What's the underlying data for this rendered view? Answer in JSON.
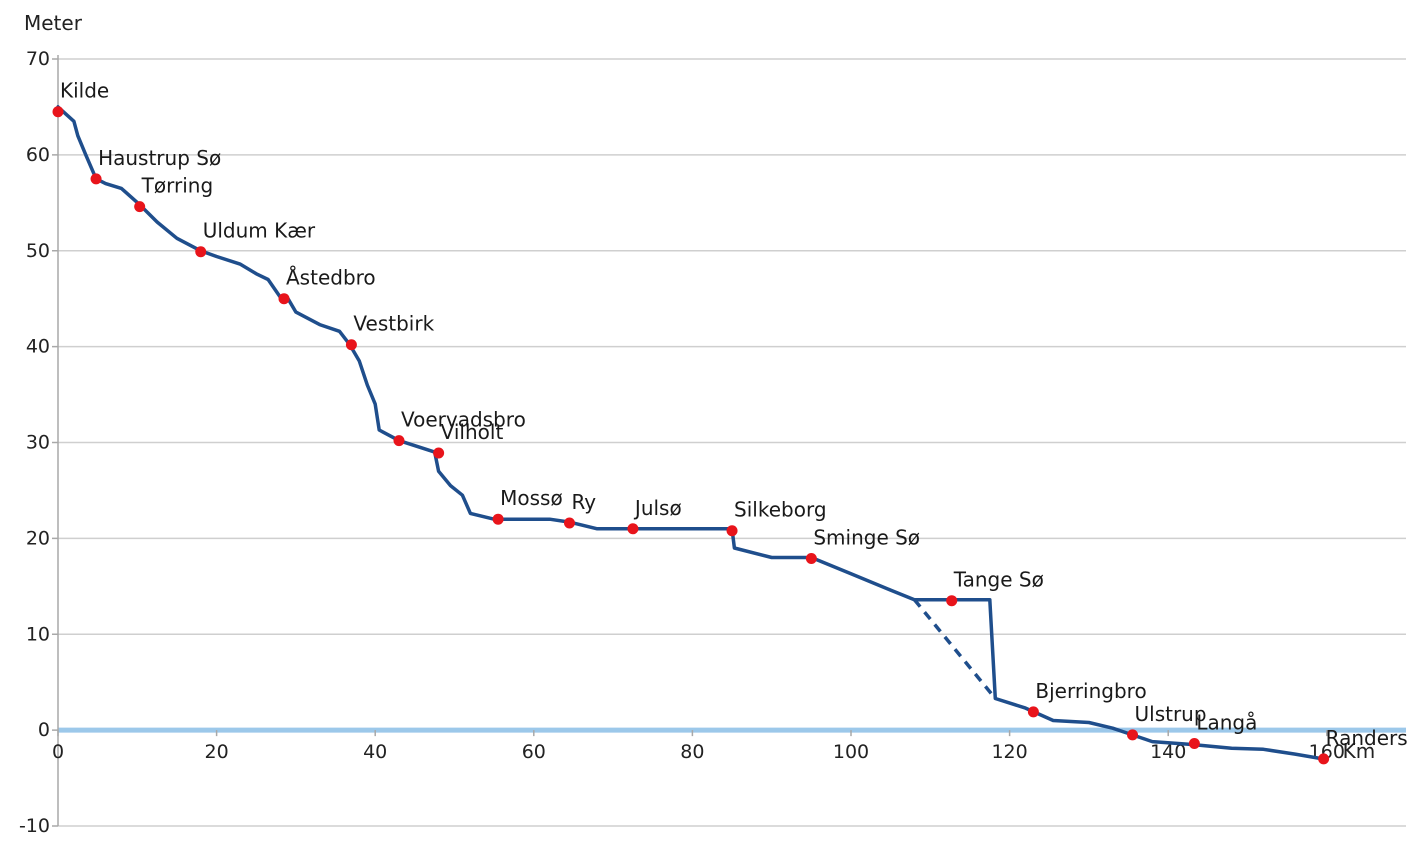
{
  "chart_data": {
    "type": "line",
    "ylabel": "Meter",
    "xunit": "Km",
    "xlim": [
      0,
      170
    ],
    "ylim": [
      -10,
      70
    ],
    "xticks": [
      0,
      20,
      40,
      60,
      80,
      100,
      120,
      140,
      160
    ],
    "yticks": [
      -10,
      0,
      10,
      20,
      30,
      40,
      50,
      60,
      70
    ],
    "grid": true,
    "colors": {
      "line": "#1f4e8c",
      "marker": "#e8141b",
      "zero_line": "#9cc8ea",
      "grid": "#cfcfcf"
    },
    "profile": [
      [
        0,
        65
      ],
      [
        2,
        63.5
      ],
      [
        2.5,
        62
      ],
      [
        3.5,
        60
      ],
      [
        4.8,
        57.5
      ],
      [
        6,
        57
      ],
      [
        8,
        56.5
      ],
      [
        10.3,
        54.8
      ],
      [
        12.5,
        53
      ],
      [
        15,
        51.3
      ],
      [
        18,
        50
      ],
      [
        20,
        49.4
      ],
      [
        23,
        48.6
      ],
      [
        25,
        47.6
      ],
      [
        26.5,
        47
      ],
      [
        28,
        45.2
      ],
      [
        29,
        45
      ],
      [
        30,
        43.6
      ],
      [
        33,
        42.3
      ],
      [
        35.5,
        41.6
      ],
      [
        36.8,
        40.2
      ],
      [
        38,
        38.5
      ],
      [
        39,
        36
      ],
      [
        40,
        34
      ],
      [
        40.5,
        31.3
      ],
      [
        43,
        30.2
      ],
      [
        47.5,
        29
      ],
      [
        48,
        27
      ],
      [
        49.5,
        25.5
      ],
      [
        51,
        24.5
      ],
      [
        52,
        22.6
      ],
      [
        55,
        22
      ],
      [
        60,
        22
      ],
      [
        62,
        22
      ],
      [
        64.5,
        21.7
      ],
      [
        68,
        21
      ],
      [
        75,
        21
      ],
      [
        85,
        21
      ],
      [
        85.3,
        19
      ],
      [
        90,
        18
      ],
      [
        95,
        18
      ],
      [
        100,
        16.3
      ],
      [
        105,
        14.6
      ],
      [
        108,
        13.6
      ],
      [
        113,
        13.6
      ],
      [
        117.5,
        13.6
      ],
      [
        118.2,
        3.3
      ],
      [
        122,
        2.3
      ],
      [
        125.5,
        1
      ],
      [
        130,
        0.8
      ],
      [
        133,
        0.2
      ],
      [
        135.5,
        -0.5
      ],
      [
        138,
        -1.2
      ],
      [
        143,
        -1.5
      ],
      [
        148,
        -1.9
      ],
      [
        152,
        -2
      ],
      [
        156,
        -2.5
      ],
      [
        159.5,
        -3
      ]
    ],
    "dashed_segment": [
      [
        108,
        13.6
      ],
      [
        118,
        3.5
      ]
    ],
    "points": [
      {
        "name": "Kilde",
        "x": 0,
        "y": 64.5
      },
      {
        "name": "Haustrup Sø",
        "x": 4.8,
        "y": 57.5
      },
      {
        "name": "Tørring",
        "x": 10.3,
        "y": 54.6
      },
      {
        "name": "Uldum Kær",
        "x": 18,
        "y": 49.9
      },
      {
        "name": "Åstedbro",
        "x": 28.5,
        "y": 45
      },
      {
        "name": "Vestbirk",
        "x": 37,
        "y": 40.2
      },
      {
        "name": "Voervadsbro",
        "x": 43,
        "y": 30.2
      },
      {
        "name": "Vilholt",
        "x": 48,
        "y": 28.9
      },
      {
        "name": "Mossø",
        "x": 55.5,
        "y": 22
      },
      {
        "name": "Ry",
        "x": 64.5,
        "y": 21.6
      },
      {
        "name": "Julsø",
        "x": 72.5,
        "y": 21
      },
      {
        "name": "Silkeborg",
        "x": 85,
        "y": 20.8
      },
      {
        "name": "Sminge Sø",
        "x": 95,
        "y": 17.9
      },
      {
        "name": "Tange Sø",
        "x": 112.7,
        "y": 13.5
      },
      {
        "name": "Bjerringbro",
        "x": 123,
        "y": 1.9
      },
      {
        "name": "Ulstrup",
        "x": 135.5,
        "y": -0.5
      },
      {
        "name": "Langå",
        "x": 143.3,
        "y": -1.4
      },
      {
        "name": "Randers",
        "x": 159.6,
        "y": -3
      }
    ]
  }
}
